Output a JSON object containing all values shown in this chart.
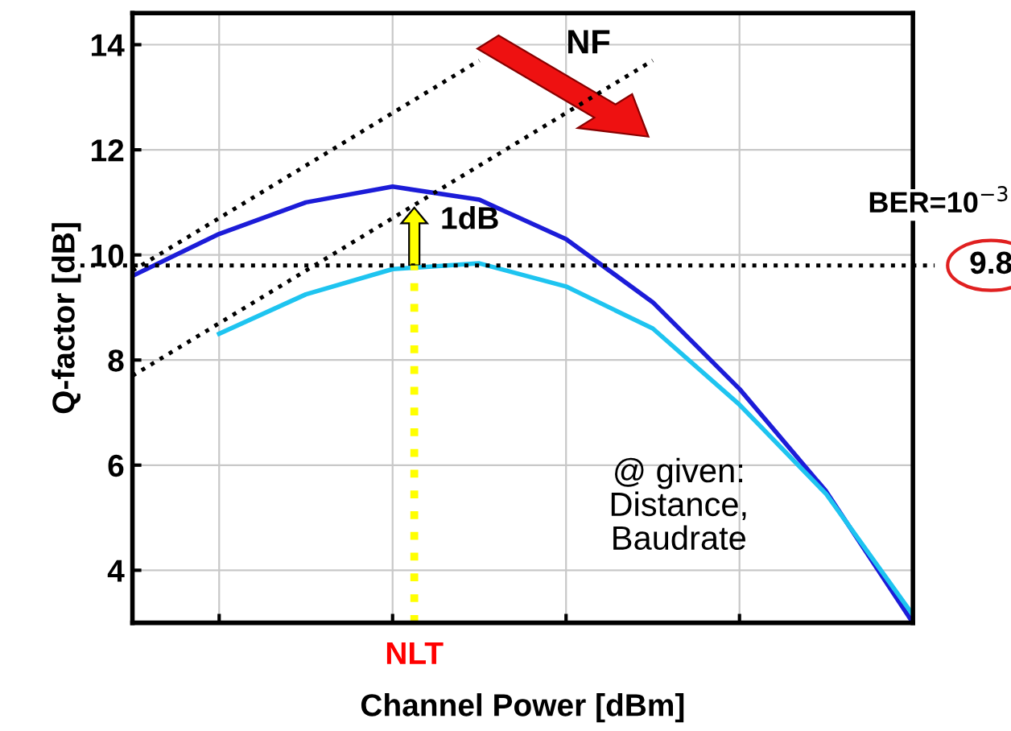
{
  "chart_data": {
    "type": "line",
    "xlabel": "Channel Power [dBm]",
    "ylabel": "Q-factor [dB]",
    "categories": [
      null,
      null,
      null,
      null,
      null,
      null,
      null,
      null,
      null,
      null
    ],
    "ylim": [
      3,
      14.6
    ],
    "yticks": [
      4,
      6,
      8,
      10,
      12,
      14
    ],
    "grid": true,
    "line_style": "solid",
    "series": [
      {
        "color": "#1c1cd8",
        "values": [
          9.6,
          10.4,
          11.0,
          11.3,
          11.05,
          10.3,
          9.1,
          7.45,
          5.5,
          3.0
        ]
      },
      {
        "color": "#1ec4f0",
        "values": [
          null,
          8.5,
          9.25,
          9.73,
          9.84,
          9.4,
          8.6,
          7.15,
          5.45,
          3.15
        ]
      },
      {
        "color": "#000000",
        "line_style": "dotted",
        "values": [
          9.7,
          10.7,
          11.7,
          12.7,
          13.7,
          null,
          null,
          null,
          null,
          null
        ]
      },
      {
        "color": "#000000",
        "line_style": "dotted",
        "values": [
          7.7,
          8.7,
          9.7,
          10.7,
          11.7,
          12.7,
          13.7,
          null,
          null,
          null
        ]
      }
    ],
    "ref_lines": [
      {
        "axis": "y",
        "value": 9.8,
        "label": "9.8",
        "color": "#000000",
        "line_style": "dotted"
      }
    ],
    "annotations": [
      "NF",
      "1dB",
      "BER=10$^{−3}$",
      "@ given:\nDistance,\nBaudrate",
      "NLT"
    ]
  }
}
